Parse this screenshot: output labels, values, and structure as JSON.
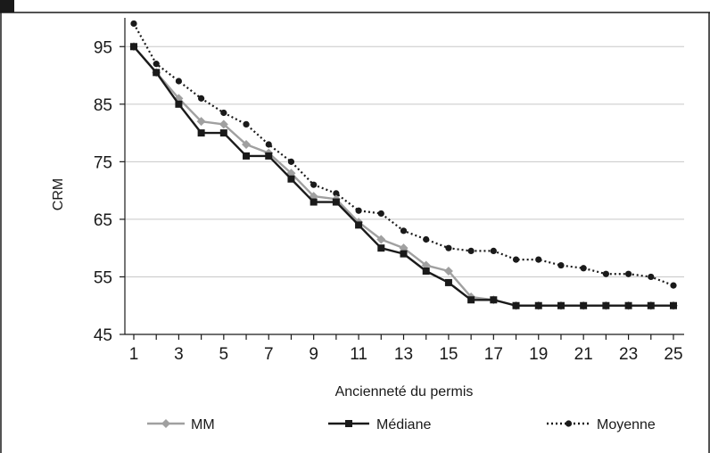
{
  "chart_data": {
    "type": "line",
    "xlabel": "Ancienneté du permis",
    "ylabel": "CRM",
    "xlim": [
      1,
      25
    ],
    "ylim": [
      45,
      100
    ],
    "yticks": [
      45,
      55,
      65,
      75,
      85,
      95
    ],
    "xticks": [
      1,
      3,
      5,
      7,
      9,
      11,
      13,
      15,
      17,
      19,
      21,
      23,
      25
    ],
    "xtick_labels": [
      "1",
      "3",
      "5",
      "7",
      "9",
      "11",
      "13",
      "15",
      "17",
      "19",
      "21",
      "23",
      "25"
    ],
    "ytick_labels": [
      "45",
      "55",
      "65",
      "75",
      "85",
      "95"
    ],
    "grid": true,
    "legend_position": "bottom",
    "x": [
      1,
      2,
      3,
      4,
      5,
      6,
      7,
      8,
      9,
      10,
      11,
      12,
      13,
      14,
      15,
      16,
      17,
      18,
      19,
      20,
      21,
      22,
      23,
      24,
      25
    ],
    "series": [
      {
        "name": "MM",
        "color": "#a0a0a0",
        "style": "solid",
        "marker": "diamond",
        "values": [
          95,
          90.5,
          86,
          82,
          81.5,
          78,
          76.5,
          73,
          69,
          68.5,
          64.5,
          61.5,
          60,
          57,
          56,
          51.5,
          51,
          50,
          50,
          50,
          50,
          50,
          50,
          50,
          50
        ]
      },
      {
        "name": "Médiane",
        "color": "#1a1a1a",
        "style": "solid",
        "marker": "square",
        "values": [
          95,
          90.5,
          85,
          80,
          80,
          76,
          76,
          72,
          68,
          68,
          64,
          60,
          59,
          56,
          54,
          51,
          51,
          50,
          50,
          50,
          50,
          50,
          50,
          50,
          50
        ]
      },
      {
        "name": "Moyenne",
        "color": "#1a1a1a",
        "style": "dotted",
        "marker": "circle",
        "values": [
          99,
          92,
          89,
          86,
          83.5,
          81.5,
          78,
          75,
          71,
          69.5,
          66.5,
          66,
          63,
          61.5,
          60,
          59.5,
          59.5,
          58,
          58,
          57,
          56.5,
          55.5,
          55.5,
          55,
          53.5
        ]
      }
    ]
  }
}
